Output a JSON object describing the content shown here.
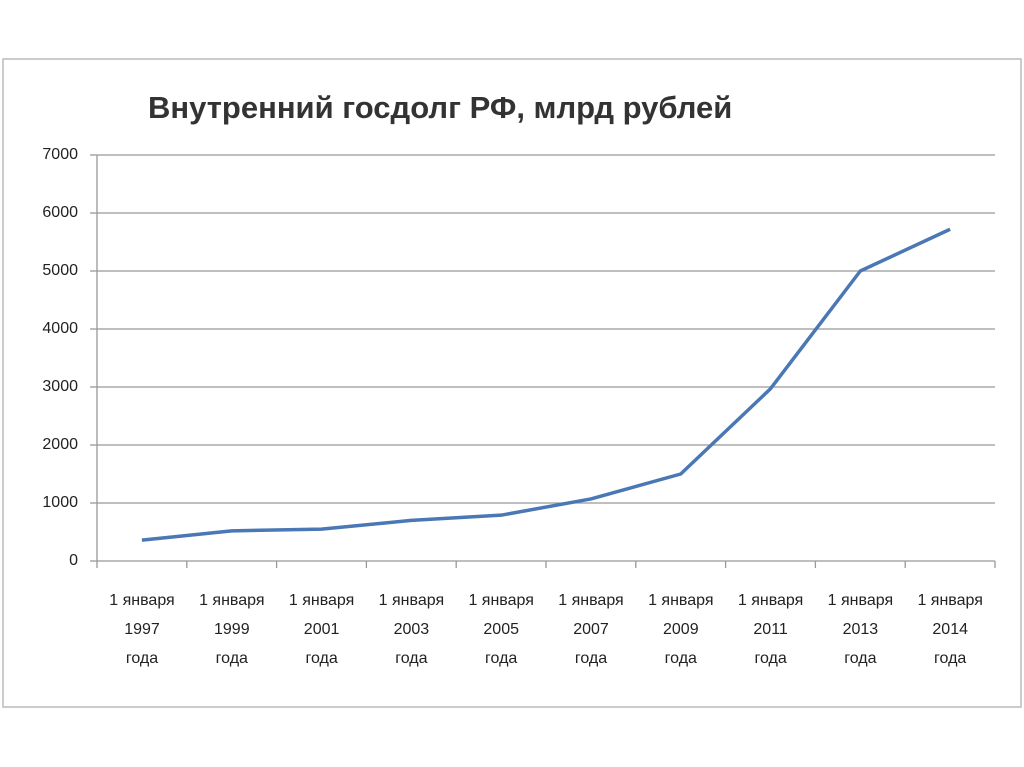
{
  "chart_data": {
    "type": "line",
    "title": "Внутренний госдолг РФ, млрд рублей",
    "categories": [
      "1 января\n1997\nгода",
      "1 января\n1999\nгода",
      "1 января\n2001\nгода",
      "1 января\n2003\nгода",
      "1 января\n2005\nгода",
      "1 января\n2007\nгода",
      "1 января\n2009\nгода",
      "1 января\n2011\nгода",
      "1 января\n2013\nгода",
      "1 января\n2014\nгода"
    ],
    "series": [
      {
        "color": "#4a78b5",
        "values": [
          360,
          520,
          550,
          700,
          790,
          1070,
          1500,
          2970,
          5000,
          5720
        ]
      }
    ],
    "ylim": [
      0,
      7000
    ],
    "yticks": [
      0,
      1000,
      2000,
      3000,
      4000,
      5000,
      6000,
      7000
    ],
    "grid": true
  }
}
